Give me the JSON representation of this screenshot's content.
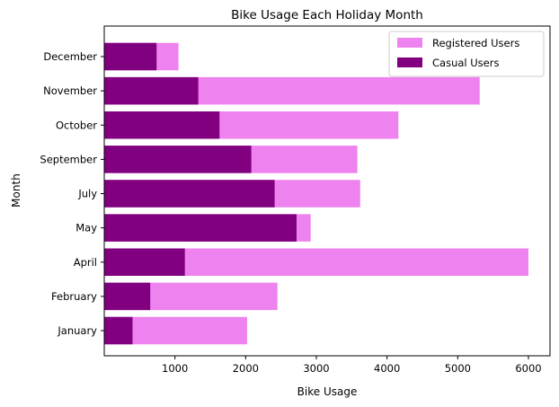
{
  "chart_data": {
    "type": "bar",
    "orientation": "horizontal",
    "stacked": false,
    "title": "Bike Usage Each Holiday Month",
    "xlabel": "Bike Usage",
    "ylabel": "Month",
    "xlim": [
      0,
      6300
    ],
    "xticks": [
      1000,
      2000,
      3000,
      4000,
      5000,
      6000
    ],
    "categories": [
      "January",
      "February",
      "April",
      "May",
      "July",
      "September",
      "October",
      "November",
      "December"
    ],
    "series": [
      {
        "name": "Registered Users",
        "color": "#ee82ee",
        "values": [
          2020,
          2450,
          6000,
          2920,
          3620,
          3580,
          4160,
          5310,
          1050
        ]
      },
      {
        "name": "Casual Users",
        "color": "#800080",
        "values": [
          400,
          650,
          1140,
          2720,
          2410,
          2080,
          1630,
          1330,
          740
        ]
      }
    ],
    "legend_position": "upper right",
    "grid": false
  }
}
